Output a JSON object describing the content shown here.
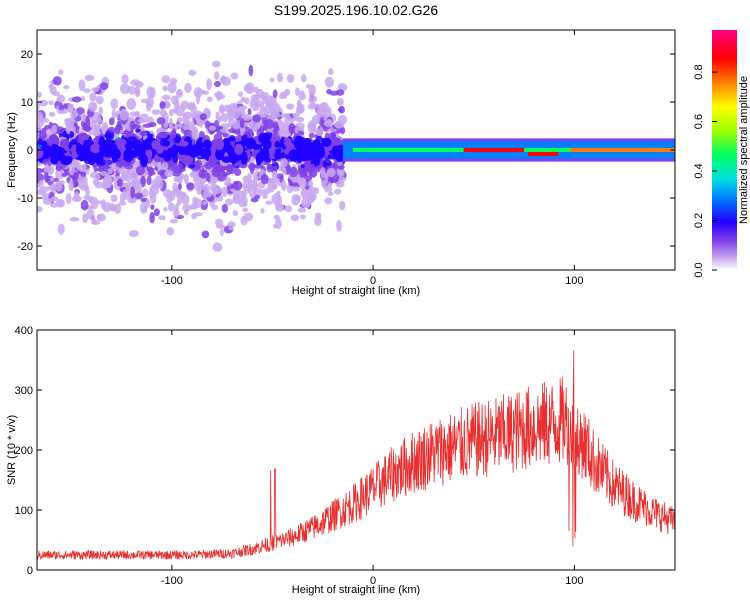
{
  "title": "S199.2025.196.10.02.G26",
  "colors": {
    "line": "#e83030",
    "axis": "#000000",
    "background": "#ffffff"
  },
  "chart_data": [
    {
      "type": "heatmap",
      "xlabel": "Height of straight line (km)",
      "ylabel": "Frequency (Hz)",
      "xlim": [
        -167,
        150
      ],
      "ylim": [
        -25,
        25
      ],
      "xticks": [
        -100,
        0,
        100
      ],
      "yticks": [
        -20,
        -10,
        0,
        10,
        20
      ],
      "colorbar": {
        "label": "Normalized spectral amplitude",
        "range": [
          0.0,
          0.97
        ],
        "ticks": [
          0.0,
          0.2,
          0.4,
          0.6,
          0.8
        ],
        "tick_labels": [
          "0.0",
          "0.2",
          "0.4",
          "0.6",
          "0.8"
        ],
        "colormap": [
          "#ffffff",
          "#c8a8f0",
          "#8040e8",
          "#2000ff",
          "#0080ff",
          "#00e0e0",
          "#00ff60",
          "#a0ff00",
          "#ffff00",
          "#ff8000",
          "#ff0000",
          "#ff0080"
        ]
      },
      "regions": [
        {
          "x_range": [
            -167,
            -15
          ],
          "frequency_center": 0,
          "frequency_spread": 25,
          "amplitude": 0.2,
          "description_level": "scattered"
        },
        {
          "x_range": [
            -15,
            150
          ],
          "frequency_center": 0,
          "frequency_spread": 2,
          "amplitude": 0.85,
          "description_level": "narrow band"
        }
      ]
    },
    {
      "type": "line",
      "xlabel": "Height of straight line (km)",
      "ylabel": "SNR (10 * v/v)",
      "xlim": [
        -167,
        150
      ],
      "ylim": [
        0,
        400
      ],
      "xticks": [
        -100,
        0,
        100
      ],
      "yticks": [
        0,
        100,
        200,
        300,
        400
      ],
      "series": [
        {
          "color": "#e83030",
          "x": [
            -167,
            -150,
            -130,
            -110,
            -90,
            -70,
            -60,
            -50,
            -40,
            -30,
            -20,
            -10,
            0,
            10,
            20,
            30,
            40,
            50,
            60,
            70,
            80,
            90,
            95,
            100,
            105,
            110,
            120,
            130,
            140,
            150
          ],
          "y": [
            25,
            25,
            25,
            25,
            25,
            28,
            35,
            45,
            55,
            70,
            90,
            110,
            135,
            160,
            180,
            195,
            205,
            215,
            222,
            230,
            240,
            245,
            250,
            235,
            210,
            180,
            140,
            115,
            95,
            80
          ]
        }
      ]
    }
  ]
}
